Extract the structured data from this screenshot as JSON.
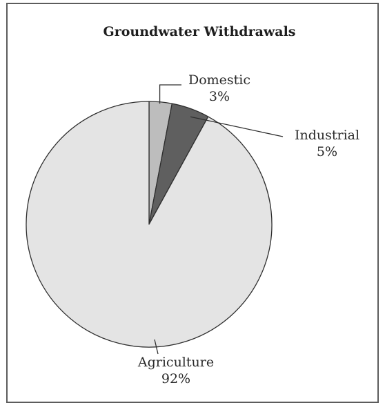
{
  "chart_data": {
    "type": "pie",
    "title": "Groundwater Withdrawals",
    "slices": [
      {
        "label": "Domestic",
        "value": 3,
        "value_label": "3%",
        "color": "#bdbdbd"
      },
      {
        "label": "Industrial",
        "value": 5,
        "value_label": "5%",
        "color": "#5f5f5f"
      },
      {
        "label": "Agriculture",
        "value": 92,
        "value_label": "92%",
        "color": "#e4e4e4"
      }
    ],
    "start_angle": "12 o'clock",
    "direction": "clockwise"
  }
}
